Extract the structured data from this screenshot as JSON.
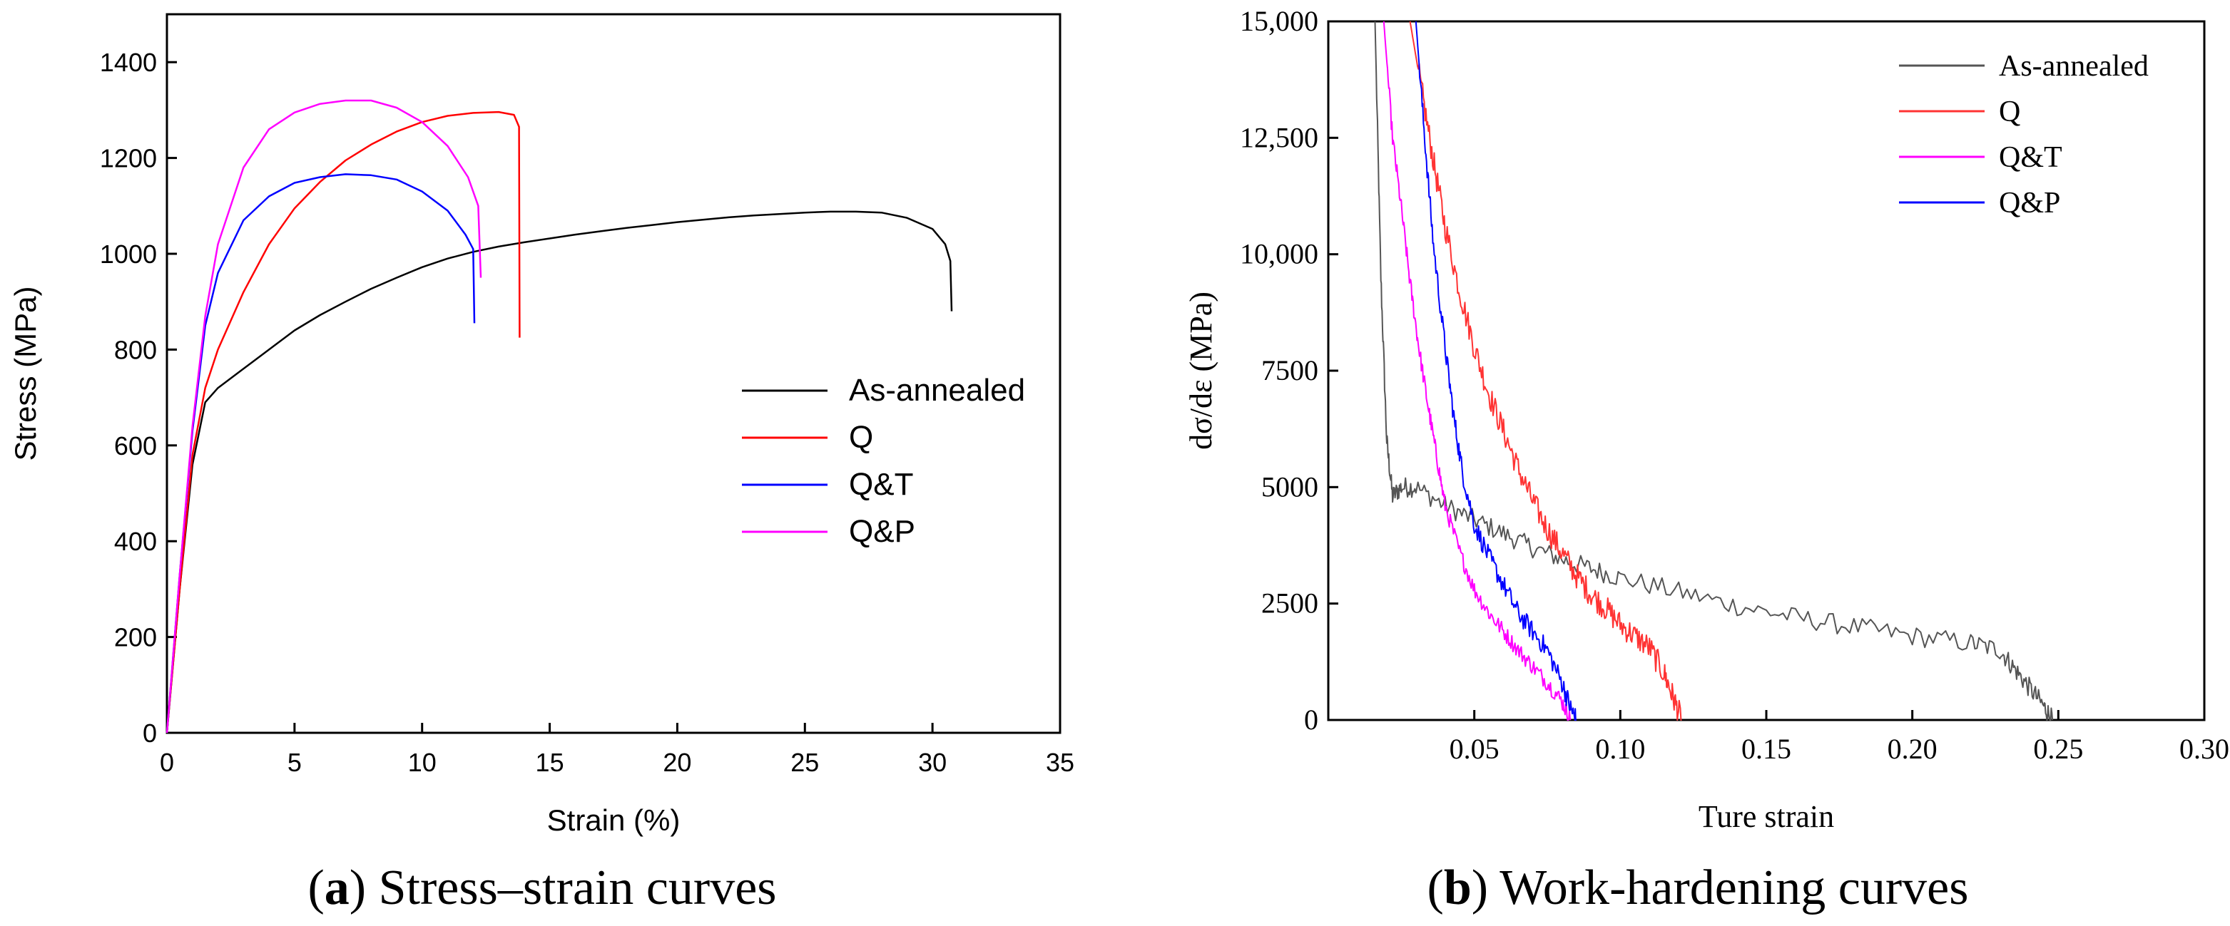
{
  "chart_data": [
    {
      "id": "a",
      "type": "line",
      "xlabel": "Strain (%)",
      "ylabel": "Stress (MPa)",
      "xlim": [
        0,
        35
      ],
      "ylim": [
        0,
        1500
      ],
      "xticks": [
        "0",
        "5",
        "10",
        "15",
        "20",
        "25",
        "30",
        "35"
      ],
      "xtick_values": [
        0,
        5,
        10,
        15,
        20,
        25,
        30,
        35
      ],
      "yticks": [
        "0",
        "200",
        "400",
        "600",
        "800",
        "1000",
        "1200",
        "1400"
      ],
      "ytick_values": [
        0,
        200,
        400,
        600,
        800,
        1000,
        1200,
        1400
      ],
      "grid": false,
      "legend_position": "center-right",
      "series": [
        {
          "name": "As-annealed",
          "color": "#000000",
          "points": [
            [
              0,
              0
            ],
            [
              0.5,
              300
            ],
            [
              1.0,
              560
            ],
            [
              1.5,
              690
            ],
            [
              2,
              720
            ],
            [
              3,
              760
            ],
            [
              4,
              800
            ],
            [
              5,
              840
            ],
            [
              6,
              872
            ],
            [
              7,
              900
            ],
            [
              8,
              927
            ],
            [
              9,
              950
            ],
            [
              10,
              972
            ],
            [
              11,
              990
            ],
            [
              12,
              1004
            ],
            [
              13,
              1015
            ],
            [
              14,
              1024
            ],
            [
              15,
              1032
            ],
            [
              16,
              1040
            ],
            [
              17,
              1047
            ],
            [
              18,
              1054
            ],
            [
              19,
              1060
            ],
            [
              20,
              1066
            ],
            [
              21,
              1071
            ],
            [
              22,
              1076
            ],
            [
              23,
              1080
            ],
            [
              24,
              1083
            ],
            [
              25,
              1086
            ],
            [
              26,
              1088
            ],
            [
              27,
              1088
            ],
            [
              28,
              1086
            ],
            [
              29,
              1075
            ],
            [
              30,
              1052
            ],
            [
              30.5,
              1020
            ],
            [
              30.7,
              985
            ],
            [
              30.75,
              880
            ]
          ]
        },
        {
          "name": "Q",
          "color": "#ff0000",
          "points": [
            [
              0,
              0
            ],
            [
              0.5,
              300
            ],
            [
              1.0,
              580
            ],
            [
              1.5,
              720
            ],
            [
              2,
              800
            ],
            [
              3,
              920
            ],
            [
              4,
              1020
            ],
            [
              5,
              1095
            ],
            [
              6,
              1150
            ],
            [
              7,
              1195
            ],
            [
              8,
              1228
            ],
            [
              9,
              1255
            ],
            [
              10,
              1275
            ],
            [
              11,
              1288
            ],
            [
              12,
              1294
            ],
            [
              13,
              1296
            ],
            [
              13.6,
              1290
            ],
            [
              13.8,
              1265
            ],
            [
              13.82,
              825
            ]
          ]
        },
        {
          "name": "Q&T",
          "color": "#0000ff",
          "points": [
            [
              0,
              0
            ],
            [
              0.5,
              330
            ],
            [
              1,
              630
            ],
            [
              1.5,
              850
            ],
            [
              2,
              960
            ],
            [
              3,
              1070
            ],
            [
              4,
              1120
            ],
            [
              5,
              1148
            ],
            [
              6,
              1160
            ],
            [
              7,
              1166
            ],
            [
              8,
              1164
            ],
            [
              9,
              1155
            ],
            [
              10,
              1130
            ],
            [
              11,
              1090
            ],
            [
              11.7,
              1040
            ],
            [
              12,
              1010
            ],
            [
              12.05,
              855
            ]
          ]
        },
        {
          "name": "Q&P",
          "color": "#ff00ff",
          "points": [
            [
              0,
              0
            ],
            [
              0.5,
              330
            ],
            [
              1,
              640
            ],
            [
              1.5,
              870
            ],
            [
              2,
              1020
            ],
            [
              3,
              1180
            ],
            [
              4,
              1260
            ],
            [
              5,
              1295
            ],
            [
              6,
              1313
            ],
            [
              7,
              1320
            ],
            [
              8,
              1320
            ],
            [
              9,
              1305
            ],
            [
              10,
              1275
            ],
            [
              11,
              1225
            ],
            [
              11.8,
              1160
            ],
            [
              12.2,
              1100
            ],
            [
              12.3,
              950
            ]
          ]
        }
      ],
      "caption_label": "a",
      "caption_text": " Stress–strain curves"
    },
    {
      "id": "b",
      "type": "line",
      "xlabel": "Ture strain",
      "ylabel": "dσ/dε (MPa)",
      "xlim": [
        0,
        0.3
      ],
      "ylim": [
        0,
        15000
      ],
      "xticks": [
        "0.05",
        "0.10",
        "0.15",
        "0.20",
        "0.25",
        "0.30"
      ],
      "xtick_values": [
        0.05,
        0.1,
        0.15,
        0.2,
        0.25,
        0.3
      ],
      "yticks": [
        "0",
        "2500",
        "5000",
        "7500",
        "10,000",
        "12,500",
        "15,000"
      ],
      "ytick_values": [
        0,
        2500,
        5000,
        7500,
        10000,
        12500,
        15000
      ],
      "grid": false,
      "legend_position": "top-right",
      "series": [
        {
          "name": "As-annealed",
          "color": "#555555",
          "noise": 220,
          "points": [
            [
              0.016,
              15000
            ],
            [
              0.018,
              9500
            ],
            [
              0.02,
              6000
            ],
            [
              0.022,
              4800
            ],
            [
              0.025,
              5000
            ],
            [
              0.03,
              5000
            ],
            [
              0.04,
              4600
            ],
            [
              0.05,
              4300
            ],
            [
              0.06,
              4000
            ],
            [
              0.07,
              3700
            ],
            [
              0.08,
              3450
            ],
            [
              0.09,
              3250
            ],
            [
              0.1,
              3050
            ],
            [
              0.12,
              2750
            ],
            [
              0.14,
              2450
            ],
            [
              0.16,
              2200
            ],
            [
              0.18,
              2000
            ],
            [
              0.2,
              1800
            ],
            [
              0.22,
              1650
            ],
            [
              0.23,
              1500
            ],
            [
              0.235,
              1100
            ],
            [
              0.24,
              700
            ],
            [
              0.245,
              300
            ],
            [
              0.248,
              0
            ]
          ]
        },
        {
          "name": "Q",
          "color": "#ff3333",
          "noise": 280,
          "points": [
            [
              0.028,
              15000
            ],
            [
              0.032,
              13500
            ],
            [
              0.036,
              12000
            ],
            [
              0.04,
              10600
            ],
            [
              0.045,
              9200
            ],
            [
              0.05,
              8000
            ],
            [
              0.055,
              7000
            ],
            [
              0.06,
              6200
            ],
            [
              0.065,
              5400
            ],
            [
              0.07,
              4700
            ],
            [
              0.075,
              4100
            ],
            [
              0.08,
              3600
            ],
            [
              0.085,
              3100
            ],
            [
              0.09,
              2700
            ],
            [
              0.095,
              2400
            ],
            [
              0.1,
              2050
            ],
            [
              0.105,
              1800
            ],
            [
              0.11,
              1550
            ],
            [
              0.115,
              1000
            ],
            [
              0.118,
              500
            ],
            [
              0.121,
              0
            ]
          ]
        },
        {
          "name": "Q&T",
          "color": "#ff00ff",
          "noise": 180,
          "points": [
            [
              0.019,
              15000
            ],
            [
              0.022,
              12500
            ],
            [
              0.025,
              11000
            ],
            [
              0.028,
              9400
            ],
            [
              0.031,
              8000
            ],
            [
              0.034,
              6800
            ],
            [
              0.037,
              5700
            ],
            [
              0.04,
              4600
            ],
            [
              0.045,
              3600
            ],
            [
              0.05,
              2800
            ],
            [
              0.055,
              2300
            ],
            [
              0.06,
              1900
            ],
            [
              0.065,
              1500
            ],
            [
              0.07,
              1150
            ],
            [
              0.075,
              800
            ],
            [
              0.08,
              400
            ],
            [
              0.083,
              0
            ]
          ]
        },
        {
          "name": "Q&P",
          "color": "#0000ff",
          "noise": 220,
          "points": [
            [
              0.03,
              15000
            ],
            [
              0.033,
              12500
            ],
            [
              0.036,
              10200
            ],
            [
              0.04,
              8000
            ],
            [
              0.043,
              6500
            ],
            [
              0.046,
              5300
            ],
            [
              0.05,
              4200
            ],
            [
              0.055,
              3500
            ],
            [
              0.06,
              2900
            ],
            [
              0.065,
              2300
            ],
            [
              0.07,
              1900
            ],
            [
              0.075,
              1500
            ],
            [
              0.08,
              800
            ],
            [
              0.083,
              250
            ],
            [
              0.085,
              0
            ]
          ]
        }
      ],
      "caption_label": "b",
      "caption_text": " Work-hardening curves"
    }
  ]
}
